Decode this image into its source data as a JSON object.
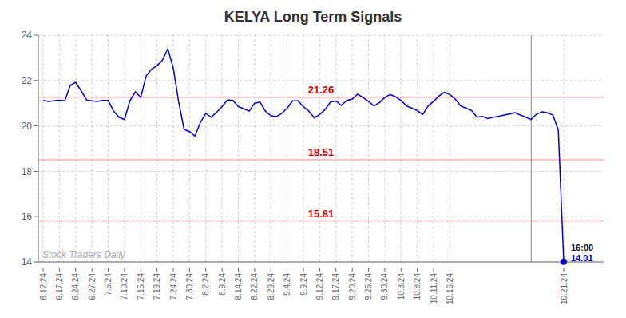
{
  "chart_data": {
    "type": "line",
    "title": "KELYA Long Term Signals",
    "categories": [
      "6.12.24",
      null,
      null,
      "6.17.24",
      null,
      null,
      "6.24.24",
      null,
      null,
      "6.27.24",
      null,
      null,
      "7.5.24",
      null,
      null,
      "7.10.24",
      null,
      null,
      "7.15.24",
      null,
      null,
      "7.19.24",
      null,
      null,
      "7.24.24",
      null,
      null,
      "7.30.24",
      null,
      null,
      "8.2.24",
      null,
      null,
      "8.9.24",
      null,
      null,
      "8.14.24",
      null,
      null,
      "8.22.24",
      null,
      null,
      "8.29.24",
      null,
      null,
      "9.4.24",
      null,
      null,
      "9.9.24",
      null,
      null,
      "9.12.24",
      null,
      null,
      "9.17.24",
      null,
      null,
      "9.20.24",
      null,
      null,
      "9.25.24",
      null,
      null,
      "9.30.24",
      null,
      null,
      "10.3.24",
      null,
      null,
      "10.8.24",
      null,
      null,
      "10.11.24",
      null,
      null,
      "10.16.24",
      null,
      null,
      null,
      null,
      null,
      null,
      null,
      null,
      null,
      null,
      null,
      null,
      null,
      null,
      null,
      null,
      null,
      null,
      null,
      null,
      "10.21.24"
    ],
    "values": [
      21.12,
      21.08,
      21.1,
      21.13,
      21.1,
      21.78,
      21.92,
      21.55,
      21.15,
      21.1,
      21.08,
      21.12,
      21.12,
      20.65,
      20.38,
      20.28,
      21.1,
      21.5,
      21.25,
      22.2,
      22.5,
      22.65,
      22.9,
      23.4,
      22.55,
      21.05,
      19.85,
      19.75,
      19.55,
      20.15,
      20.55,
      20.38,
      20.6,
      20.85,
      21.15,
      21.12,
      20.85,
      20.75,
      20.65,
      21.0,
      21.05,
      20.65,
      20.45,
      20.4,
      20.55,
      20.78,
      21.1,
      21.1,
      20.85,
      20.65,
      20.35,
      20.5,
      20.72,
      21.05,
      21.1,
      20.9,
      21.12,
      21.18,
      21.4,
      21.25,
      21.08,
      20.88,
      21.02,
      21.25,
      21.38,
      21.28,
      21.12,
      20.88,
      20.78,
      20.68,
      20.5,
      20.88,
      21.08,
      21.32,
      21.48,
      21.38,
      21.18,
      20.88,
      20.78,
      20.68,
      20.38,
      20.42,
      20.32,
      20.38,
      20.42,
      20.48,
      20.52,
      20.58,
      20.48,
      20.38,
      20.28,
      20.52,
      20.62,
      20.58,
      20.48,
      19.82,
      14.01
    ],
    "color": "#0000cc",
    "ylim": [
      14,
      24
    ],
    "yticks": [
      14,
      16,
      18,
      20,
      22,
      24
    ],
    "grid": true,
    "hlines": [
      {
        "y": 21.26,
        "label": "21.26",
        "color": "#ffaaaa",
        "label_color": "#cc0000"
      },
      {
        "y": 18.51,
        "label": "18.51",
        "color": "#ffaaaa",
        "label_color": "#cc0000"
      },
      {
        "y": 15.81,
        "label": "15.81",
        "color": "#ffaaaa",
        "label_color": "#cc0000"
      }
    ],
    "vline": {
      "position": 90,
      "color": "#888888"
    },
    "end_labels": [
      {
        "text": "16:00",
        "color": "#111111"
      },
      {
        "text": "14.01",
        "color": "#0000cc"
      }
    ],
    "watermark": {
      "text": "Stock Traders Daily",
      "color": "#aaaaaa"
    }
  }
}
